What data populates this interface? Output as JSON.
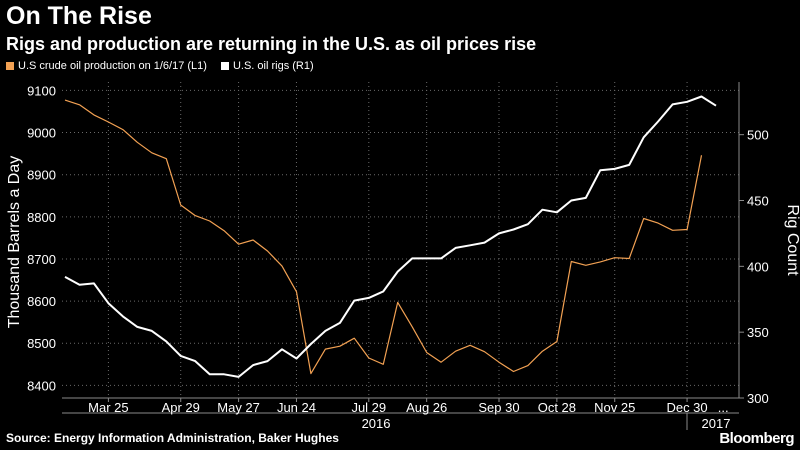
{
  "title": "On The Rise",
  "subtitle": "Rigs and production are returning in the U.S. as oil prices rise",
  "source": "Source: Energy Information Administration, Baker Hughes",
  "brand": "Bloomberg",
  "colors": {
    "production": "#f2a153",
    "rigs": "#ffffff",
    "grid": "#6a6a6a",
    "background": "#000000"
  },
  "chart_data": {
    "type": "line",
    "ylabel_left": "Thousand Barrels a Day",
    "ylabel_right": "Rig Count",
    "ylim_left": [
      8370,
      9120
    ],
    "ylim_right": [
      300,
      540
    ],
    "yticks_left": [
      8400,
      8500,
      8600,
      8700,
      8800,
      8900,
      9000,
      9100
    ],
    "yticks_right": [
      300,
      350,
      400,
      450,
      500
    ],
    "xtick_labels": [
      "Mar 25",
      "Apr 29",
      "May 27",
      "Jun 24",
      "Jul 29",
      "Aug 26",
      "Sep 30",
      "Oct 28",
      "Nov 25",
      "Dec 30",
      "..."
    ],
    "xtick_index": [
      3,
      8,
      12,
      16,
      21,
      25,
      30,
      34,
      38,
      43,
      45.5
    ],
    "year_labels": [
      {
        "text": "2016",
        "index": 21.5
      },
      {
        "text": "2017",
        "index": 45
      }
    ],
    "x": [
      "Mar 4",
      "Mar 11",
      "Mar 18",
      "Mar 25",
      "Apr 1",
      "Apr 8",
      "Apr 15",
      "Apr 22",
      "Apr 29",
      "May 6",
      "May 13",
      "May 20",
      "May 27",
      "Jun 3",
      "Jun 10",
      "Jun 17",
      "Jun 24",
      "Jul 1",
      "Jul 8",
      "Jul 15",
      "Jul 22",
      "Jul 29",
      "Aug 5",
      "Aug 12",
      "Aug 19",
      "Aug 26",
      "Sep 2",
      "Sep 9",
      "Sep 16",
      "Sep 23",
      "Sep 30",
      "Oct 7",
      "Oct 14",
      "Oct 21",
      "Oct 28",
      "Nov 4",
      "Nov 11",
      "Nov 18",
      "Nov 25",
      "Dec 2",
      "Dec 9",
      "Dec 16",
      "Dec 23",
      "Dec 30",
      "Jan 6",
      "Jan 13"
    ],
    "series": [
      {
        "name": "U.S crude oil production on 1/6/17 (L1)",
        "axis": "left",
        "color": "#f2a153",
        "values": [
          9077,
          9066,
          9042,
          9025,
          9007,
          8977,
          8952,
          8938,
          8828,
          8803,
          8790,
          8767,
          8735,
          8745,
          8719,
          8683,
          8622,
          8428,
          8486,
          8493,
          8512,
          8465,
          8450,
          8597,
          8539,
          8478,
          8455,
          8481,
          8495,
          8480,
          8455,
          8433,
          8447,
          8481,
          8504,
          8694,
          8685,
          8693,
          8703,
          8701,
          8796,
          8785,
          8768,
          8770,
          8946,
          null
        ]
      },
      {
        "name": "U.S. oil rigs (R1)",
        "axis": "right",
        "color": "#ffffff",
        "values": [
          392,
          386,
          387,
          372,
          362,
          354,
          351,
          343,
          332,
          328,
          318,
          318,
          316,
          325,
          328,
          337,
          330,
          341,
          351,
          357,
          374,
          376,
          381,
          396,
          406,
          406,
          406,
          414,
          416,
          418,
          425,
          428,
          432,
          443,
          441,
          450,
          452,
          473,
          474,
          477,
          498,
          510,
          523,
          525,
          529,
          522
        ]
      }
    ]
  }
}
